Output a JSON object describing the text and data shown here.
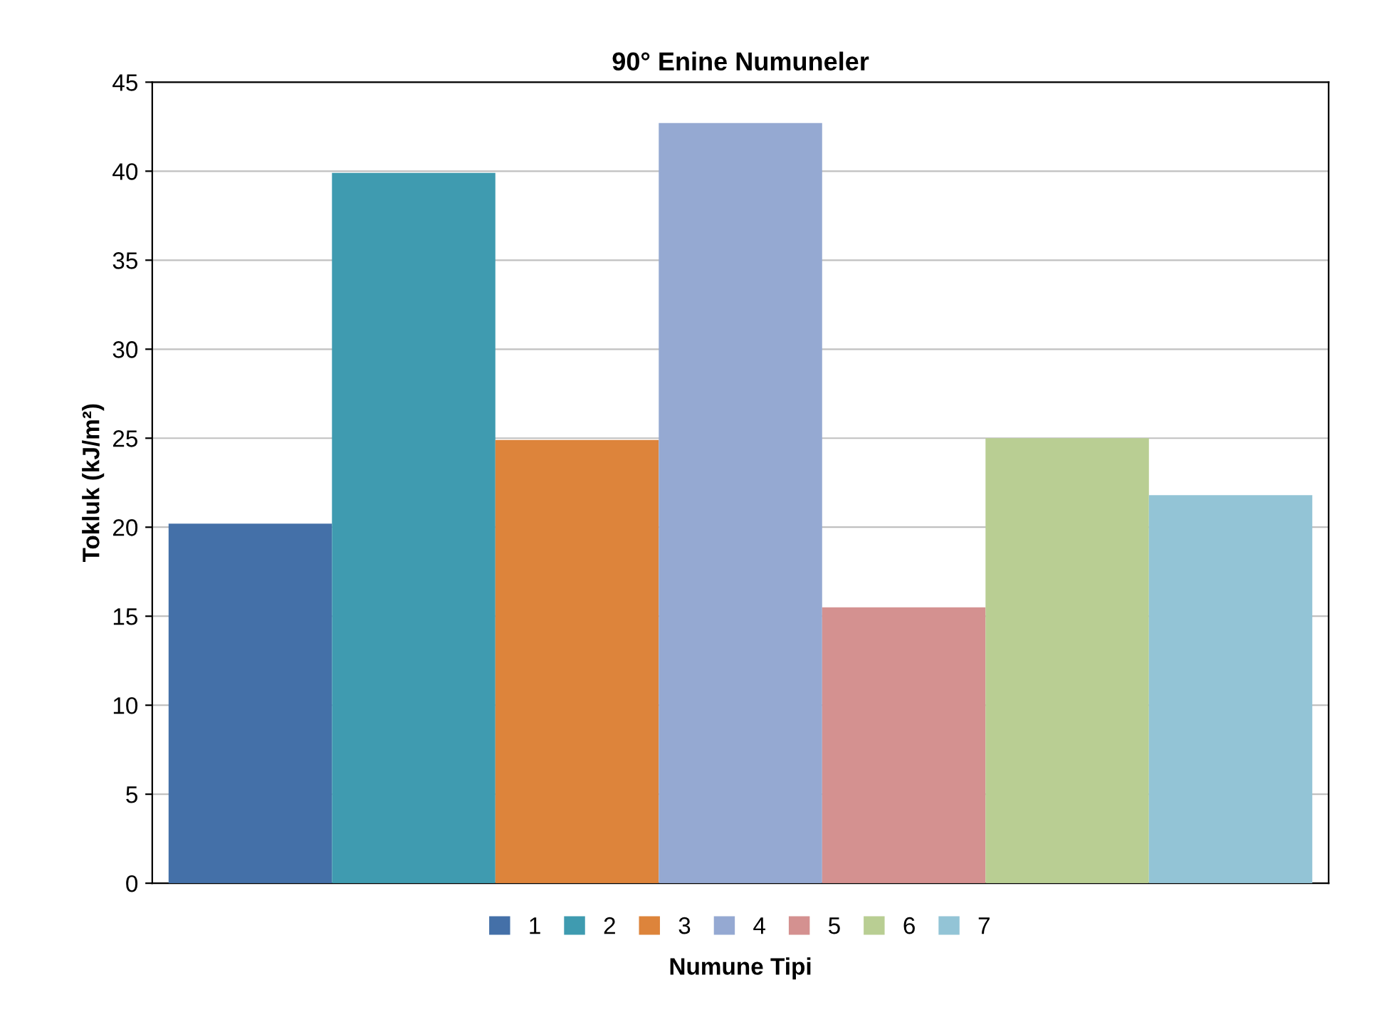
{
  "chart_data": {
    "type": "bar",
    "title": "90° Enine Numuneler",
    "xlabel": "Numune Tipi",
    "ylabel": "Tokluk (kJ/m²)",
    "categories": [
      null,
      null,
      null,
      null,
      null,
      null,
      null
    ],
    "series": [
      {
        "name": "1",
        "color": "#4470a8",
        "values": [
          20.2,
          null,
          null,
          null,
          null,
          null,
          null
        ]
      },
      {
        "name": "2",
        "color": "#3f9bb0",
        "values": [
          null,
          39.9,
          null,
          null,
          null,
          null,
          null
        ]
      },
      {
        "name": "3",
        "color": "#dd843b",
        "values": [
          null,
          null,
          24.9,
          null,
          null,
          null,
          null
        ]
      },
      {
        "name": "4",
        "color": "#95a9d2",
        "values": [
          null,
          null,
          null,
          42.7,
          null,
          null,
          null
        ]
      },
      {
        "name": "5",
        "color": "#d49190",
        "values": [
          null,
          null,
          null,
          null,
          15.5,
          null,
          null
        ]
      },
      {
        "name": "6",
        "color": "#b9ce93",
        "values": [
          null,
          null,
          null,
          null,
          null,
          25,
          null
        ]
      },
      {
        "name": "7",
        "color": "#93c4d6",
        "values": [
          null,
          null,
          null,
          null,
          null,
          null,
          21.8
        ]
      }
    ],
    "ylim": [
      0,
      45
    ],
    "yticks": [
      0,
      5,
      10,
      15,
      20,
      25,
      30,
      35,
      40,
      45
    ],
    "grid": "y",
    "legend": "bottom"
  }
}
